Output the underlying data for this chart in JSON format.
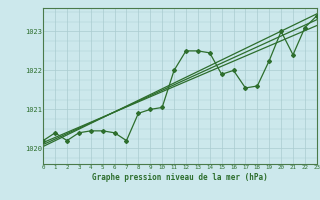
{
  "title": "Graphe pression niveau de la mer (hPa)",
  "bg_color": "#cce8ec",
  "grid_color": "#aaccd0",
  "line_color": "#2d6e2d",
  "x_min": 0,
  "x_max": 23,
  "y_min": 1019.6,
  "y_max": 1023.6,
  "y_ticks": [
    1020,
    1021,
    1022,
    1023
  ],
  "x_ticks": [
    0,
    1,
    2,
    3,
    4,
    5,
    6,
    7,
    8,
    9,
    10,
    11,
    12,
    13,
    14,
    15,
    16,
    17,
    18,
    19,
    20,
    21,
    22,
    23
  ],
  "main_series": [
    [
      0,
      1020.2
    ],
    [
      1,
      1020.4
    ],
    [
      2,
      1020.2
    ],
    [
      3,
      1020.4
    ],
    [
      4,
      1020.45
    ],
    [
      5,
      1020.45
    ],
    [
      6,
      1020.4
    ],
    [
      7,
      1020.2
    ],
    [
      8,
      1020.9
    ],
    [
      9,
      1021.0
    ],
    [
      10,
      1021.05
    ],
    [
      11,
      1022.0
    ],
    [
      12,
      1022.5
    ],
    [
      13,
      1022.5
    ],
    [
      14,
      1022.45
    ],
    [
      15,
      1021.9
    ],
    [
      16,
      1022.0
    ],
    [
      17,
      1021.55
    ],
    [
      18,
      1021.6
    ],
    [
      19,
      1022.25
    ],
    [
      20,
      1023.0
    ],
    [
      21,
      1022.4
    ],
    [
      22,
      1023.1
    ],
    [
      23,
      1023.4
    ]
  ],
  "trend_line": [
    [
      0,
      1020.05
    ],
    [
      23,
      1023.45
    ]
  ],
  "trend_line2": [
    [
      0,
      1020.1
    ],
    [
      23,
      1023.3
    ]
  ],
  "trend_line3": [
    [
      0,
      1020.15
    ],
    [
      23,
      1023.15
    ]
  ],
  "xlabel_fontsize": 5.5,
  "ylabel_fontsize": 5.5,
  "title_fontsize": 5.5,
  "spine_color": "#4a7a4a"
}
